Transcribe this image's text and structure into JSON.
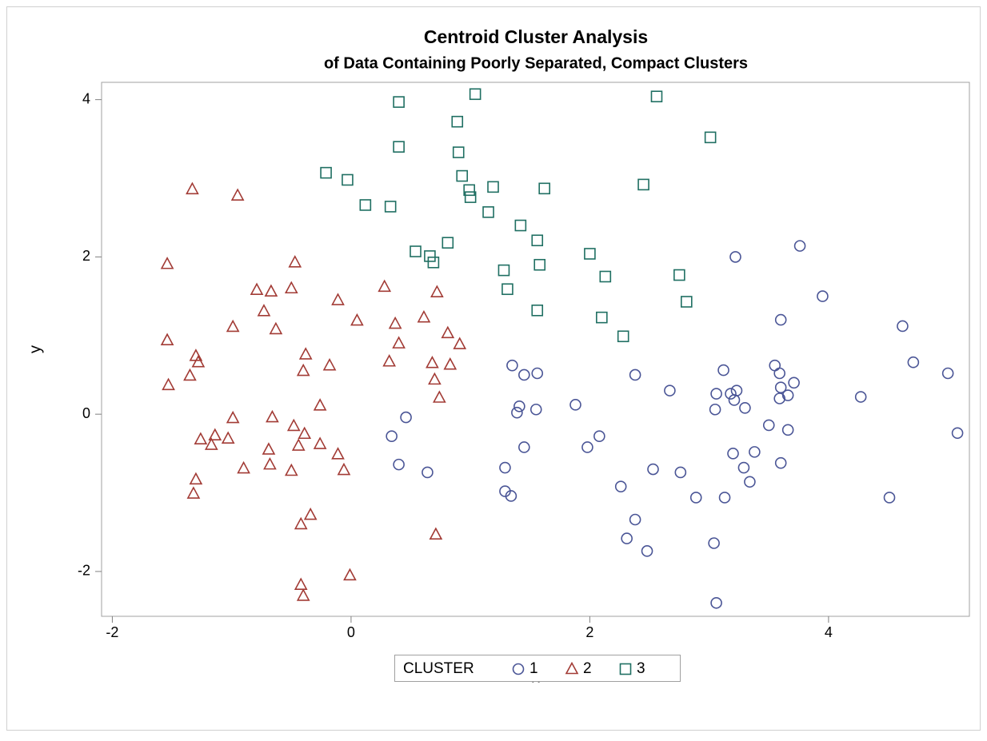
{
  "chart_data": {
    "type": "scatter",
    "title": "Centroid Cluster Analysis",
    "subtitle": "of Data Containing Poorly Separated, Compact Clusters",
    "x_label": "x",
    "y_label": "y",
    "legend_title": "CLUSTER",
    "xlim": [
      -2.09,
      5.18
    ],
    "ylim": [
      -2.57,
      4.22
    ],
    "xticks": [
      -2,
      0,
      2,
      4
    ],
    "yticks": [
      -2,
      0,
      2,
      4
    ],
    "series": [
      {
        "name": "1",
        "color": "#4a5596",
        "marker": "circle",
        "x": [
          5.08,
          5.0,
          4.71,
          4.62,
          4.51,
          4.27,
          3.95,
          3.76,
          3.6,
          3.22,
          3.55,
          3.59,
          3.6,
          3.59,
          3.71,
          3.66,
          3.66,
          3.5,
          3.38,
          3.6,
          3.29,
          3.34,
          3.2,
          3.3,
          3.23,
          3.21,
          3.18,
          3.12,
          3.06,
          3.05,
          3.13,
          3.04,
          3.06,
          2.89,
          2.76,
          2.67,
          2.53,
          2.38,
          2.38,
          2.48,
          2.31,
          2.26,
          2.08,
          1.98,
          1.88,
          1.56,
          1.55,
          1.45,
          1.45,
          1.41,
          1.39,
          1.35,
          1.29,
          1.29,
          1.34,
          0.64,
          0.46,
          0.4,
          0.34
        ],
        "values": [
          -0.24,
          0.52,
          0.66,
          1.12,
          -1.06,
          0.22,
          1.5,
          2.14,
          1.2,
          2.0,
          0.62,
          0.52,
          0.34,
          0.2,
          0.4,
          0.24,
          -0.2,
          -0.14,
          -0.48,
          -0.62,
          -0.68,
          -0.86,
          -0.5,
          0.08,
          0.3,
          0.18,
          0.26,
          0.56,
          0.26,
          0.06,
          -1.06,
          -1.64,
          -2.4,
          -1.06,
          -0.74,
          0.3,
          -0.7,
          0.5,
          -1.34,
          -1.74,
          -1.58,
          -0.92,
          -0.28,
          -0.42,
          0.12,
          0.52,
          0.06,
          0.5,
          -0.42,
          0.1,
          0.02,
          0.62,
          -0.68,
          -0.98,
          -1.04,
          -0.74,
          -0.04,
          -0.64,
          -0.28
        ]
      },
      {
        "name": "2",
        "color": "#a23b35",
        "marker": "triangle",
        "x": [
          -1.33,
          -0.95,
          -1.54,
          -0.47,
          -0.79,
          -0.67,
          -0.5,
          -0.73,
          -0.99,
          -0.63,
          -0.11,
          0.05,
          0.28,
          0.37,
          0.4,
          0.61,
          0.72,
          0.81,
          0.91,
          -1.54,
          -1.3,
          -1.28,
          -1.35,
          -1.53,
          -0.38,
          -0.4,
          -0.18,
          0.32,
          0.68,
          0.83,
          0.7,
          0.74,
          -0.26,
          -0.99,
          -0.66,
          -0.48,
          -1.26,
          -1.14,
          -1.17,
          -1.03,
          -0.39,
          -0.44,
          -0.26,
          -0.69,
          -0.11,
          -0.9,
          -0.68,
          -0.5,
          -0.06,
          -1.3,
          -1.32,
          -0.34,
          -0.42,
          0.71,
          -0.42,
          -0.4,
          -0.01
        ],
        "values": [
          2.86,
          2.78,
          1.91,
          1.93,
          1.58,
          1.56,
          1.6,
          1.31,
          1.11,
          1.08,
          1.45,
          1.19,
          1.62,
          1.15,
          0.9,
          1.23,
          1.55,
          1.03,
          0.89,
          0.94,
          0.74,
          0.66,
          0.49,
          0.37,
          0.76,
          0.55,
          0.62,
          0.67,
          0.65,
          0.63,
          0.44,
          0.21,
          0.11,
          -0.05,
          -0.04,
          -0.15,
          -0.32,
          -0.27,
          -0.39,
          -0.31,
          -0.25,
          -0.4,
          -0.38,
          -0.45,
          -0.51,
          -0.69,
          -0.64,
          -0.72,
          -0.71,
          -0.83,
          -1.01,
          -1.28,
          -1.4,
          -1.53,
          -2.17,
          -2.31,
          -2.05
        ]
      },
      {
        "name": "3",
        "color": "#1f6f62",
        "marker": "square",
        "x": [
          0.4,
          1.04,
          2.56,
          0.89,
          3.01,
          0.4,
          0.9,
          -0.21,
          -0.03,
          0.93,
          0.99,
          1.0,
          1.19,
          1.62,
          2.45,
          0.12,
          0.33,
          1.15,
          1.42,
          1.56,
          0.81,
          0.54,
          0.66,
          0.69,
          1.58,
          2.0,
          1.28,
          2.13,
          2.75,
          1.31,
          2.81,
          1.56,
          2.1,
          2.28
        ],
        "values": [
          3.97,
          4.07,
          4.04,
          3.72,
          3.52,
          3.4,
          3.33,
          3.07,
          2.98,
          3.03,
          2.85,
          2.76,
          2.89,
          2.87,
          2.92,
          2.66,
          2.64,
          2.57,
          2.4,
          2.21,
          2.18,
          2.07,
          2.01,
          1.93,
          1.9,
          2.04,
          1.83,
          1.75,
          1.77,
          1.59,
          1.43,
          1.32,
          1.23,
          0.99
        ]
      }
    ]
  }
}
